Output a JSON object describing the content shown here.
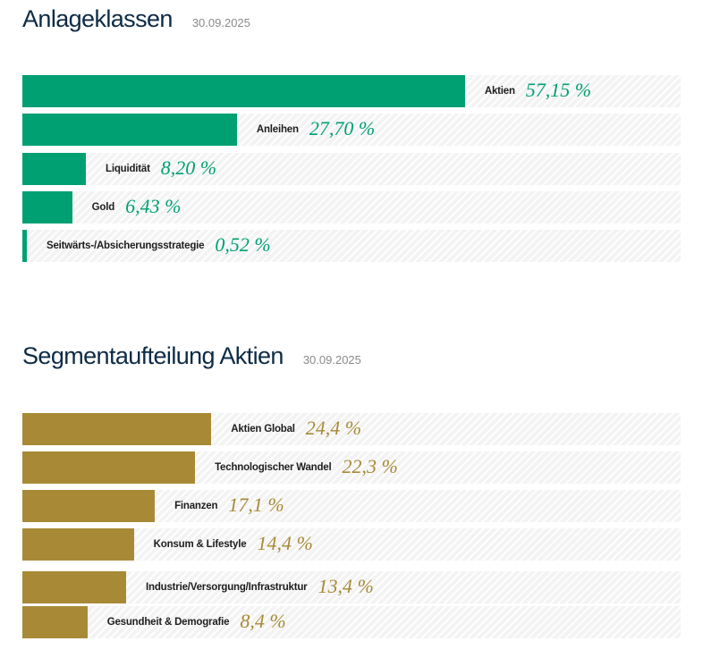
{
  "colors": {
    "asset_classes": "#00a073",
    "segments": "#a88a36",
    "title": "#0d2b45"
  },
  "chart_data": [
    {
      "type": "bar",
      "orientation": "horizontal",
      "title": "Anlageklassen",
      "subtitle": "30.09.2025",
      "categories": [
        "Aktien",
        "Anleihen",
        "Liquidität",
        "Gold",
        "Seitwärts-/Absicherungsstrategie"
      ],
      "values": [
        57.15,
        27.7,
        8.2,
        6.43,
        0.52
      ],
      "labels": [
        "57,15 %",
        "27,70 %",
        "8,20 %",
        "6,43 %",
        "0,52 %"
      ],
      "xlim": [
        0,
        85
      ],
      "unit": "%",
      "grid": false,
      "legend": "none"
    },
    {
      "type": "bar",
      "orientation": "horizontal",
      "title": "Segmentaufteilung Aktien",
      "subtitle": "30.09.2025",
      "categories": [
        "Aktien Global",
        "Technologischer Wandel",
        "Finanzen",
        "Konsum & Lifestyle",
        "Industrie/Versorgung/Infrastruktur",
        "Gesundheit & Demografie"
      ],
      "values": [
        24.4,
        22.3,
        17.1,
        14.4,
        13.4,
        8.4
      ],
      "labels": [
        "24,4 %",
        "22,3 %",
        "17,1 %",
        "14,4 %",
        "13,4 %",
        "8,4 %"
      ],
      "xlim": [
        0,
        85
      ],
      "unit": "%",
      "grid": false,
      "legend": "none"
    }
  ]
}
